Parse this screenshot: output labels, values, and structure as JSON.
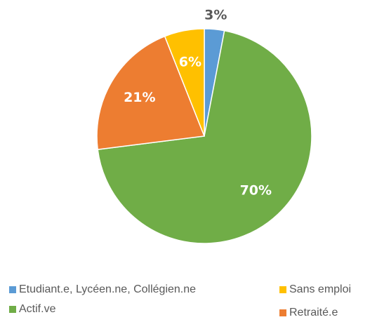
{
  "chart_data": {
    "type": "pie",
    "categories": [
      "Etudiant.e, Lycéen.ne, Collégien.ne",
      "Actif.ve",
      "Retraité.e",
      "Sans emploi"
    ],
    "values": [
      3,
      70,
      21,
      6
    ],
    "value_labels": [
      "3%",
      "70%",
      "21%",
      "6%"
    ],
    "colors": [
      "#5b9bd5",
      "#70ad47",
      "#ed7d31",
      "#ffc000"
    ],
    "legend": "bottom"
  }
}
